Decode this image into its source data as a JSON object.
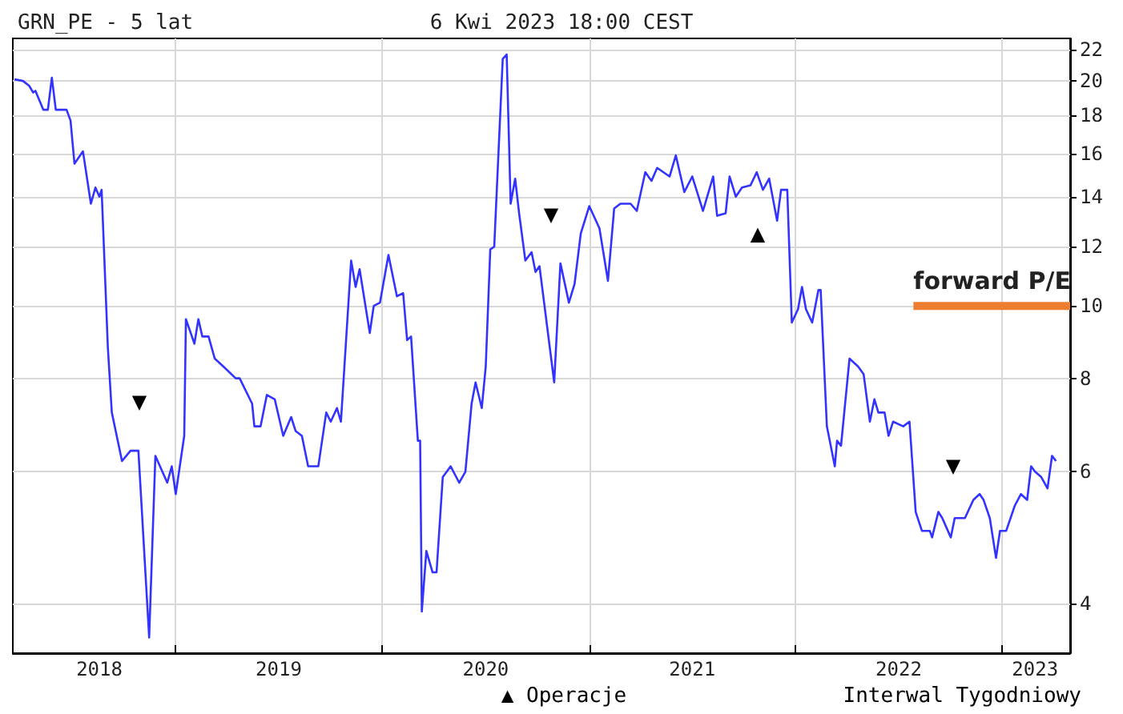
{
  "chart_data": {
    "type": "line",
    "title": "GRN_PE - 5 lat",
    "subtitle": "6 Kwi 2023 18:00 CEST",
    "annotations": [
      "▼",
      "▼",
      "▲",
      "▼",
      "▲ Operacje",
      "Interwal Tygodniowy"
    ],
    "series": [
      {
        "color": "#3333ff",
        "x": [
          "2018-03-22",
          "2018-04-06",
          "2018-04-17",
          "2018-04-24",
          "2018-04-28",
          "2018-05-12",
          "2018-05-20",
          "2018-05-27",
          "2018-06-03",
          "2018-06-22",
          "2018-06-29",
          "2018-07-06",
          "2018-07-21",
          "2018-08-04",
          "2018-08-12",
          "2018-08-19",
          "2018-08-23",
          "2018-09-03",
          "2018-09-10",
          "2018-09-28",
          "2018-10-13",
          "2018-10-27",
          "2018-11-15",
          "2018-11-26",
          "2018-12-17",
          "2018-12-25",
          "2019-01-01",
          "2019-01-16",
          "2019-01-19",
          "2019-02-03",
          "2019-02-10",
          "2019-02-17",
          "2019-02-28",
          "2019-03-11",
          "2019-03-26",
          "2019-04-17",
          "2019-04-24",
          "2019-05-16",
          "2019-05-20",
          "2019-05-31",
          "2019-06-11",
          "2019-06-25",
          "2019-07-10",
          "2019-07-24",
          "2019-08-01",
          "2019-08-12",
          "2019-08-23",
          "2019-09-10",
          "2019-09-24",
          "2019-10-02",
          "2019-10-13",
          "2019-10-20",
          "2019-11-07",
          "2019-11-15",
          "2019-11-22",
          "2019-12-10",
          "2019-12-17",
          "2019-12-28",
          "2020-01-12",
          "2020-01-27",
          "2020-02-07",
          "2020-02-14",
          "2020-02-21",
          "2020-03-04",
          "2020-03-08",
          "2020-03-11",
          "2020-03-19",
          "2020-03-30",
          "2020-04-06",
          "2020-04-17",
          "2020-05-01",
          "2020-05-16",
          "2020-05-27",
          "2020-06-07",
          "2020-06-14",
          "2020-06-25",
          "2020-07-02",
          "2020-07-10",
          "2020-07-17",
          "2020-08-01",
          "2020-08-08",
          "2020-08-15",
          "2020-08-23",
          "2020-08-30",
          "2020-09-10",
          "2020-09-21",
          "2020-09-28",
          "2020-10-05",
          "2020-10-31",
          "2020-11-11",
          "2020-11-26",
          "2020-12-06",
          "2020-12-17",
          "2021-01-01",
          "2021-01-19",
          "2021-02-03",
          "2021-02-14",
          "2021-02-25",
          "2021-03-15",
          "2021-03-26",
          "2021-04-10",
          "2021-04-21",
          "2021-05-01",
          "2021-05-23",
          "2021-06-03",
          "2021-06-18",
          "2021-07-02",
          "2021-07-21",
          "2021-08-08",
          "2021-08-15",
          "2021-08-30",
          "2021-09-06",
          "2021-09-17",
          "2021-09-28",
          "2021-10-13",
          "2021-10-24",
          "2021-11-04",
          "2021-11-15",
          "2021-11-29",
          "2021-12-06",
          "2021-12-17",
          "2021-12-25",
          "2022-01-05",
          "2022-01-12",
          "2022-01-19",
          "2022-01-30",
          "2022-02-10",
          "2022-02-14",
          "2022-02-25",
          "2022-03-11",
          "2022-03-15",
          "2022-03-22",
          "2022-04-06",
          "2022-04-21",
          "2022-05-01",
          "2022-05-12",
          "2022-05-20",
          "2022-05-27",
          "2022-06-07",
          "2022-06-14",
          "2022-06-22",
          "2022-07-10",
          "2022-07-21",
          "2022-08-01",
          "2022-08-12",
          "2022-08-26",
          "2022-08-30",
          "2022-09-10",
          "2022-09-17",
          "2022-10-02",
          "2022-10-09",
          "2022-10-16",
          "2022-10-27",
          "2022-11-11",
          "2022-11-22",
          "2022-11-29",
          "2022-12-10",
          "2022-12-21",
          "2022-12-28",
          "2023-01-08",
          "2023-01-23",
          "2023-02-03",
          "2023-02-14",
          "2023-02-21",
          "2023-02-28",
          "2023-03-11",
          "2023-03-22",
          "2023-03-30",
          "2023-04-06"
        ],
        "values": [
          20.1,
          20.0,
          19.7,
          19.3,
          19.4,
          18.3,
          18.3,
          20.2,
          18.3,
          18.3,
          17.7,
          15.5,
          16.1,
          13.7,
          14.4,
          14.0,
          14.3,
          8.8,
          7.2,
          6.2,
          6.4,
          6.4,
          3.6,
          6.3,
          5.8,
          6.1,
          5.6,
          6.7,
          9.6,
          8.9,
          9.6,
          9.1,
          9.1,
          8.5,
          8.3,
          8.0,
          8.0,
          7.4,
          6.9,
          6.9,
          7.6,
          7.5,
          6.7,
          7.1,
          6.8,
          6.7,
          6.1,
          6.1,
          7.2,
          7.0,
          7.3,
          7.0,
          11.5,
          10.6,
          11.2,
          9.2,
          10.0,
          10.1,
          11.7,
          10.3,
          10.4,
          9.0,
          9.1,
          6.6,
          6.6,
          3.9,
          4.7,
          4.4,
          4.4,
          5.9,
          6.1,
          5.8,
          6.0,
          7.4,
          7.9,
          7.3,
          8.3,
          11.9,
          12.0,
          21.4,
          21.7,
          13.7,
          14.8,
          13.3,
          11.5,
          11.8,
          11.1,
          11.3,
          7.9,
          11.4,
          10.1,
          10.7,
          12.5,
          13.6,
          12.7,
          10.8,
          13.5,
          13.7,
          13.7,
          13.4,
          15.1,
          14.7,
          15.3,
          14.9,
          15.9,
          14.2,
          14.9,
          13.4,
          14.9,
          13.2,
          13.3,
          14.9,
          14.0,
          14.4,
          14.5,
          15.1,
          14.3,
          14.8,
          13.0,
          14.3,
          14.3,
          9.5,
          9.9,
          10.6,
          9.9,
          9.5,
          10.5,
          10.5,
          6.9,
          6.1,
          6.6,
          6.5,
          8.5,
          8.3,
          8.1,
          7.0,
          7.5,
          7.2,
          7.2,
          6.7,
          7.0,
          6.9,
          7.0,
          5.3,
          5.0,
          5.0,
          4.9,
          5.3,
          5.2,
          4.9,
          5.2,
          5.2,
          5.2,
          5.5,
          5.6,
          5.5,
          5.2,
          4.6,
          5.0,
          5.0,
          5.4,
          5.6,
          5.5,
          6.1,
          6.0,
          5.9,
          5.7,
          6.3,
          6.2
        ]
      },
      {
        "type": "line",
        "name": "forward P/E",
        "color": "#ed7d31",
        "x": [
          "2022-07-28",
          "2023-05-01"
        ],
        "values": [
          10,
          10
        ]
      }
    ],
    "xlim": [
      "2018-03-19",
      "2023-05-01"
    ],
    "xticks": [
      {
        "value": "2018-08-19",
        "label": "2018"
      },
      {
        "value": "2019-01-01",
        "label": null
      },
      {
        "value": "2019-07-02",
        "label": "2019"
      },
      {
        "value": "2020-01-01",
        "label": null
      },
      {
        "value": "2020-07-02",
        "label": "2020"
      },
      {
        "value": "2021-01-01",
        "label": null
      },
      {
        "value": "2021-07-02",
        "label": "2021"
      },
      {
        "value": "2022-01-01",
        "label": null
      },
      {
        "value": "2022-07-02",
        "label": "2022"
      },
      {
        "value": "2023-01-01",
        "label": null
      },
      {
        "value": "2023-02-28",
        "label": "2023"
      }
    ],
    "ylim": [
      3.43,
      22.8
    ],
    "yticks": [
      4,
      6,
      8,
      10,
      12,
      14,
      16,
      18,
      20,
      22
    ],
    "log": "y",
    "grid": true,
    "legend": false,
    "marker": "none",
    "line_style": "solid"
  }
}
